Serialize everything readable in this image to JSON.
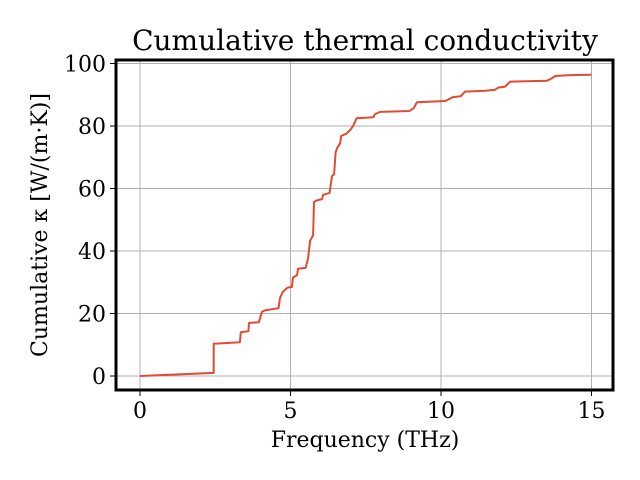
{
  "chart_data": {
    "type": "line",
    "title": "Cumulative thermal conductivity",
    "xlabel": "Frequency (THz)",
    "ylabel": "Cumulative κ [W/(m·K)]",
    "xlim": [
      -0.8,
      15.75
    ],
    "ylim": [
      -4.8,
      101
    ],
    "xticks": [
      0,
      5,
      10,
      15
    ],
    "yticks": [
      0,
      20,
      40,
      60,
      80,
      100
    ],
    "grid": true,
    "legend": null,
    "series": [
      {
        "name": "Cumulative kappa",
        "color": "#e24a33",
        "x": [
          0,
          2.45,
          2.45,
          3.32,
          3.35,
          3.6,
          3.62,
          3.95,
          4.05,
          4.15,
          4.6,
          4.65,
          4.75,
          4.9,
          5.05,
          5.08,
          5.22,
          5.25,
          5.5,
          5.58,
          5.65,
          5.75,
          5.78,
          5.9,
          6.05,
          6.08,
          6.3,
          6.38,
          6.45,
          6.5,
          6.55,
          6.65,
          6.68,
          6.85,
          6.98,
          7.08,
          7.2,
          7.75,
          7.8,
          7.97,
          8.95,
          9.1,
          9.2,
          10.15,
          10.38,
          10.65,
          10.8,
          11.47,
          11.8,
          11.9,
          12.13,
          12.3,
          13.52,
          13.63,
          13.8,
          14.3,
          15.0
        ],
        "y": [
          0,
          1.0,
          10.3,
          10.8,
          14.0,
          14.3,
          17.0,
          17.2,
          20.5,
          21.0,
          21.7,
          25.0,
          27.0,
          28.3,
          28.5,
          31.5,
          32.3,
          34.3,
          34.6,
          37.5,
          43.3,
          45.0,
          55.7,
          56.3,
          56.6,
          58.0,
          58.6,
          64.0,
          64.5,
          71.5,
          73.0,
          74.5,
          76.8,
          77.5,
          78.7,
          80.0,
          82.5,
          82.8,
          83.7,
          84.5,
          84.8,
          85.8,
          87.6,
          88.0,
          89.2,
          89.5,
          91.0,
          91.3,
          91.6,
          92.3,
          92.6,
          94.2,
          94.5,
          95.0,
          96.0,
          96.3,
          96.4
        ]
      }
    ]
  },
  "labels": {
    "title": "Cumulative thermal conductivity",
    "xlabel": "Frequency (THz)",
    "ylabel": "Cumulative κ [W/(m·K)]",
    "xtick_labels": [
      "0",
      "5",
      "10",
      "15"
    ],
    "ytick_labels": [
      "0",
      "20",
      "40",
      "60",
      "80",
      "100"
    ]
  },
  "colors": {
    "line": "#e24a33",
    "grid": "#b0b0b0",
    "spine": "#000000"
  }
}
